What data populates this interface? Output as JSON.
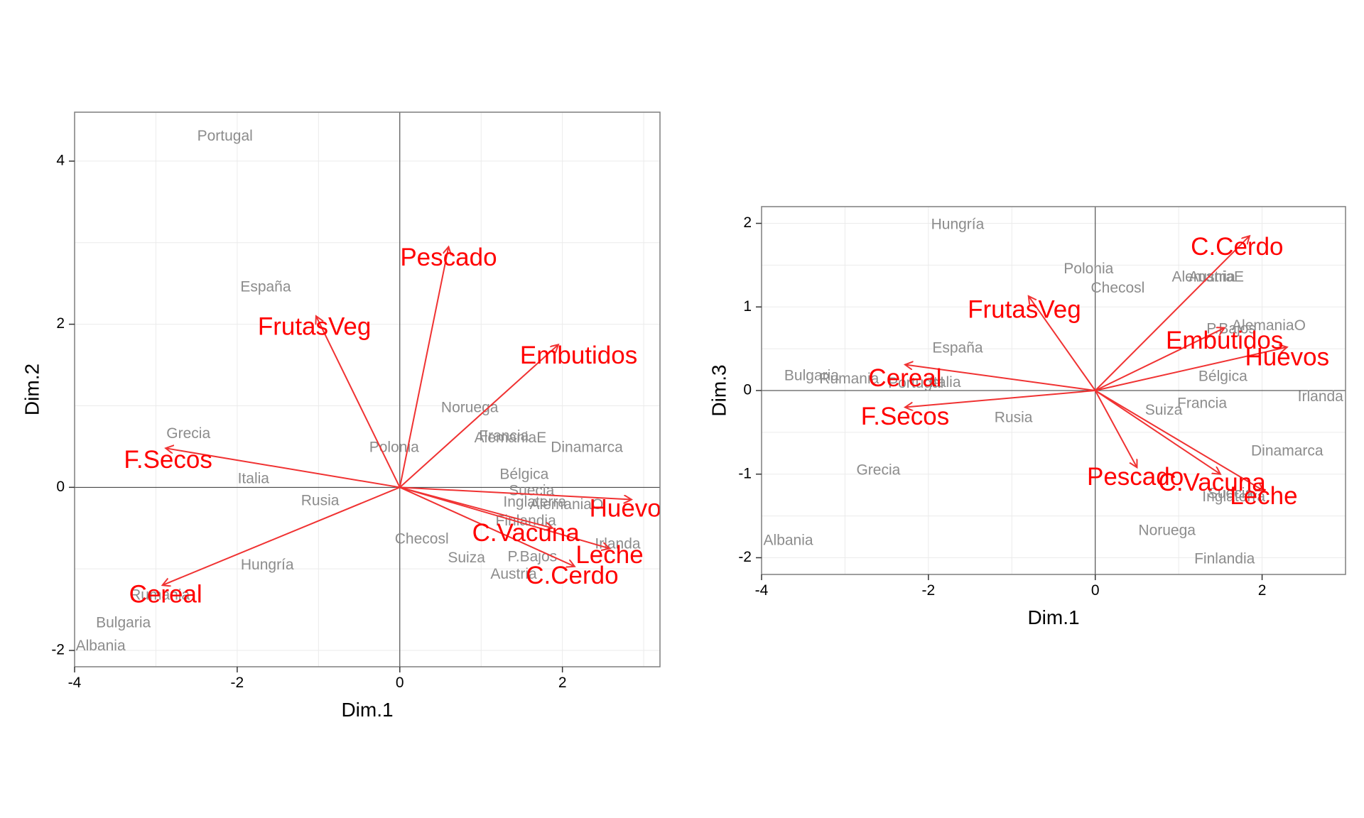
{
  "chart_data": [
    {
      "type": "scatter",
      "title": "",
      "xlabel": "Dim.1",
      "ylabel": "Dim.2",
      "xlim": [
        -4,
        3.2
      ],
      "ylim": [
        -2.2,
        4.6
      ],
      "xticks": [
        -4,
        -2,
        0,
        2
      ],
      "yticks": [
        -2,
        0,
        2,
        4
      ],
      "grid": true,
      "colors": {
        "points": "#8c8c8c",
        "arrows": "#f03232",
        "vars": "#ff0000"
      },
      "points": [
        {
          "label": "Portugal",
          "x": -2.15,
          "y": 4.3
        },
        {
          "label": "España",
          "x": -1.65,
          "y": 2.45
        },
        {
          "label": "Grecia",
          "x": -2.6,
          "y": 0.65
        },
        {
          "label": "Italia",
          "x": -1.8,
          "y": 0.1
        },
        {
          "label": "Rusia",
          "x": -0.98,
          "y": -0.17
        },
        {
          "label": "Hungría",
          "x": -1.63,
          "y": -0.96
        },
        {
          "label": "Rumania",
          "x": -2.95,
          "y": -1.33
        },
        {
          "label": "Bulgaria",
          "x": -3.4,
          "y": -1.67
        },
        {
          "label": "Albania",
          "x": -3.68,
          "y": -1.95
        },
        {
          "label": "Polonia",
          "x": -0.07,
          "y": 0.48
        },
        {
          "label": "Noruega",
          "x": 0.86,
          "y": 0.97
        },
        {
          "label": "Francia",
          "x": 1.28,
          "y": 0.62
        },
        {
          "label": "AlemaniaE",
          "x": 1.36,
          "y": 0.6
        },
        {
          "label": "Dinamarca",
          "x": 2.3,
          "y": 0.48
        },
        {
          "label": "Bélgica",
          "x": 1.53,
          "y": 0.15
        },
        {
          "label": "Suecia",
          "x": 1.62,
          "y": -0.05
        },
        {
          "label": "Inglaterra",
          "x": 1.66,
          "y": -0.19
        },
        {
          "label": "AlemaniaO",
          "x": 2.05,
          "y": -0.22
        },
        {
          "label": "Finlandia",
          "x": 1.55,
          "y": -0.42
        },
        {
          "label": "Irlanda",
          "x": 2.68,
          "y": -0.7
        },
        {
          "label": "Checosl",
          "x": 0.27,
          "y": -0.64
        },
        {
          "label": "Suiza",
          "x": 0.82,
          "y": -0.87
        },
        {
          "label": "P.Bajos",
          "x": 1.63,
          "y": -0.86
        },
        {
          "label": "Austria",
          "x": 1.4,
          "y": -1.07
        }
      ],
      "vectors": [
        {
          "label": "Pescado",
          "x": 0.6,
          "y": 2.95,
          "lx": 0.6,
          "ly": 2.8
        },
        {
          "label": "FrutasVeg",
          "x": -1.03,
          "y": 2.1,
          "lx": -1.05,
          "ly": 1.95
        },
        {
          "label": "Embutidos",
          "x": 1.95,
          "y": 1.75,
          "lx": 2.2,
          "ly": 1.6
        },
        {
          "label": "F.Secos",
          "x": -2.88,
          "y": 0.48,
          "lx": -2.85,
          "ly": 0.32
        },
        {
          "label": "Cereal",
          "x": -2.92,
          "y": -1.2,
          "lx": -2.88,
          "ly": -1.33
        },
        {
          "label": "Huevos",
          "x": 2.85,
          "y": -0.15,
          "lx": 2.85,
          "ly": -0.28
        },
        {
          "label": "C.Vacuna",
          "x": 1.88,
          "y": -0.5,
          "lx": 1.55,
          "ly": -0.58
        },
        {
          "label": "Leche",
          "x": 2.58,
          "y": -0.75,
          "lx": 2.58,
          "ly": -0.85
        },
        {
          "label": "C.Cerdo",
          "x": 2.15,
          "y": -0.97,
          "lx": 2.12,
          "ly": -1.1
        }
      ]
    },
    {
      "type": "scatter",
      "title": "",
      "xlabel": "Dim.1",
      "ylabel": "Dim.3",
      "xlim": [
        -4,
        3
      ],
      "ylim": [
        -2.2,
        2.2
      ],
      "xticks": [
        -4,
        -2,
        0,
        2
      ],
      "yticks": [
        -2,
        -1,
        0,
        1,
        2
      ],
      "grid": true,
      "colors": {
        "points": "#8c8c8c",
        "arrows": "#f03232",
        "vars": "#ff0000"
      },
      "points": [
        {
          "label": "Hungría",
          "x": -1.65,
          "y": 1.98
        },
        {
          "label": "Polonia",
          "x": -0.08,
          "y": 1.45
        },
        {
          "label": "Checosl",
          "x": 0.27,
          "y": 1.22
        },
        {
          "label": "AlemaniaE",
          "x": 1.35,
          "y": 1.35
        },
        {
          "label": "Austria",
          "x": 1.4,
          "y": 1.35
        },
        {
          "label": "España",
          "x": -1.65,
          "y": 0.5
        },
        {
          "label": "P.Bajos",
          "x": 1.63,
          "y": 0.73
        },
        {
          "label": "AlemaniaO",
          "x": 2.08,
          "y": 0.77
        },
        {
          "label": "Bulgaria",
          "x": -3.4,
          "y": 0.17
        },
        {
          "label": "Rumania",
          "x": -2.95,
          "y": 0.13
        },
        {
          "label": "Portugal",
          "x": -2.15,
          "y": 0.08
        },
        {
          "label": "Italia",
          "x": -1.8,
          "y": 0.09
        },
        {
          "label": "Bélgica",
          "x": 1.53,
          "y": 0.16
        },
        {
          "label": "Irlanda",
          "x": 2.7,
          "y": -0.08
        },
        {
          "label": "Francia",
          "x": 1.28,
          "y": -0.16
        },
        {
          "label": "Suiza",
          "x": 0.82,
          "y": -0.24
        },
        {
          "label": "Rusia",
          "x": -0.98,
          "y": -0.33
        },
        {
          "label": "Dinamarca",
          "x": 2.3,
          "y": -0.73
        },
        {
          "label": "Grecia",
          "x": -2.6,
          "y": -0.96
        },
        {
          "label": "Suecia",
          "x": 1.62,
          "y": -1.24
        },
        {
          "label": "Inglaterra",
          "x": 1.66,
          "y": -1.28
        },
        {
          "label": "Albania",
          "x": -3.68,
          "y": -1.8
        },
        {
          "label": "Noruega",
          "x": 0.86,
          "y": -1.68
        },
        {
          "label": "Finlandia",
          "x": 1.55,
          "y": -2.02
        }
      ],
      "vectors": [
        {
          "label": "C.Cerdo",
          "x": 1.85,
          "y": 1.85,
          "lx": 1.7,
          "ly": 1.7
        },
        {
          "label": "FrutasVeg",
          "x": -0.8,
          "y": 1.13,
          "lx": -0.85,
          "ly": 0.95
        },
        {
          "label": "Embutidos",
          "x": 1.55,
          "y": 0.75,
          "lx": 1.55,
          "ly": 0.58
        },
        {
          "label": "Huevos",
          "x": 2.3,
          "y": 0.52,
          "lx": 2.3,
          "ly": 0.38
        },
        {
          "label": "Cereal",
          "x": -2.28,
          "y": 0.31,
          "lx": -2.28,
          "ly": 0.13
        },
        {
          "label": "F.Secos",
          "x": -2.28,
          "y": -0.2,
          "lx": -2.28,
          "ly": -0.33
        },
        {
          "label": "Pescado",
          "x": 0.5,
          "y": -0.92,
          "lx": 0.48,
          "ly": -1.05
        },
        {
          "label": "C.Vacuna",
          "x": 1.5,
          "y": -1.0,
          "lx": 1.4,
          "ly": -1.12
        },
        {
          "label": "Leche",
          "x": 2.02,
          "y": -1.2,
          "lx": 2.02,
          "ly": -1.28
        }
      ]
    }
  ]
}
